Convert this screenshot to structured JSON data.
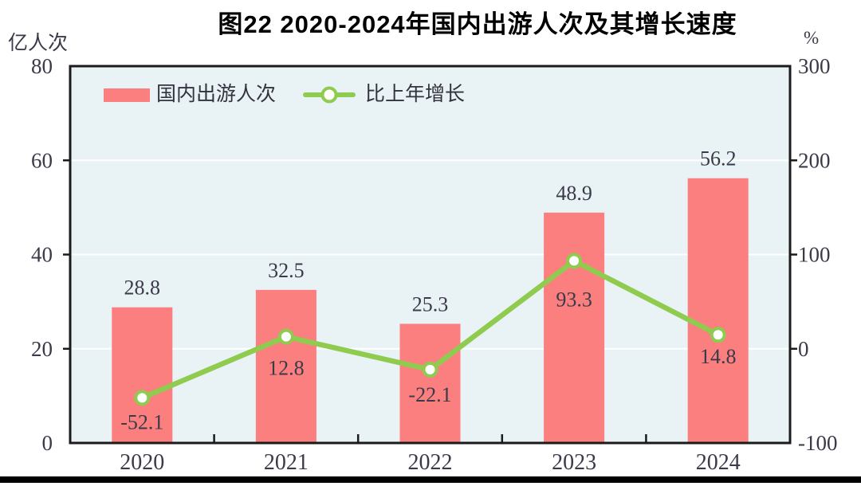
{
  "title": "图22  2020-2024年国内出游人次及其增长速度",
  "chart_data": {
    "type": "combo-bar-line",
    "title": "图22  2020-2024年国内出游人次及其增长速度",
    "categories": [
      "2020",
      "2021",
      "2022",
      "2023",
      "2024"
    ],
    "series": [
      {
        "name": "国内出游人次",
        "type": "bar",
        "axis": "left",
        "color": "#FB7F7F",
        "values": [
          28.8,
          32.5,
          25.3,
          48.9,
          56.2
        ],
        "labels": [
          "28.8",
          "32.5",
          "25.3",
          "48.9",
          "56.2"
        ]
      },
      {
        "name": "比上年增长",
        "type": "line",
        "axis": "right",
        "color": "#8FCB4E",
        "marker_fill": "#FFFFFF",
        "values": [
          -52.1,
          12.8,
          -22.1,
          93.3,
          14.8
        ],
        "labels": [
          "-52.1",
          "12.8",
          "-22.1",
          "93.3",
          "14.8"
        ]
      }
    ],
    "left_axis": {
      "unit": "亿人次",
      "range": [
        0,
        80
      ],
      "ticks": [
        "0",
        "20",
        "40",
        "60",
        "80"
      ]
    },
    "right_axis": {
      "unit": "%",
      "range": [
        -100,
        300
      ],
      "ticks": [
        "-100",
        "0",
        "100",
        "200",
        "300"
      ]
    },
    "legend_position": "top-left",
    "grid": true,
    "colors": {
      "plot_bg": "#E9F2F5",
      "grid": "#FFFFFF",
      "axis": "#1B1B1B",
      "text": "#3A3A4A",
      "title": "#000000"
    }
  }
}
